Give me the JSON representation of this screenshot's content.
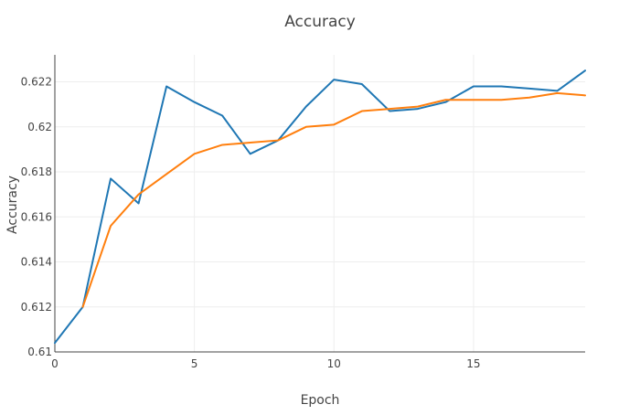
{
  "chart_data": {
    "type": "line",
    "title": "Accuracy",
    "xlabel": "Epoch",
    "ylabel": "Accuracy",
    "xlim": [
      0,
      19
    ],
    "ylim": [
      0.61,
      0.6232
    ],
    "xticks": [
      0,
      5,
      10,
      15
    ],
    "yticks": [
      0.61,
      0.612,
      0.614,
      0.616,
      0.618,
      0.62,
      0.622
    ],
    "ytick_labels": [
      "0.61",
      "0.612",
      "0.614",
      "0.616",
      "0.618",
      "0.62",
      "0.622"
    ],
    "grid": true,
    "legend": false,
    "x": [
      0,
      1,
      2,
      3,
      4,
      5,
      6,
      7,
      8,
      9,
      10,
      11,
      12,
      13,
      14,
      15,
      16,
      17,
      18,
      19
    ],
    "series": [
      {
        "color": "#1f77b4",
        "values": [
          0.6104,
          0.612,
          0.6177,
          0.6166,
          0.6218,
          0.6211,
          0.6205,
          0.6188,
          0.6194,
          0.6209,
          0.6221,
          0.6219,
          0.6207,
          0.6208,
          0.6211,
          0.6218,
          0.6218,
          0.6217,
          0.6216,
          0.6225
        ]
      },
      {
        "color": "#ff7f0e",
        "values": [
          null,
          0.612,
          0.6156,
          0.617,
          0.6179,
          0.6188,
          0.6192,
          0.6193,
          0.6194,
          0.62,
          0.6201,
          0.6207,
          0.6208,
          0.6209,
          0.6212,
          0.6212,
          0.6212,
          0.6213,
          0.6215,
          0.6214
        ]
      }
    ]
  }
}
